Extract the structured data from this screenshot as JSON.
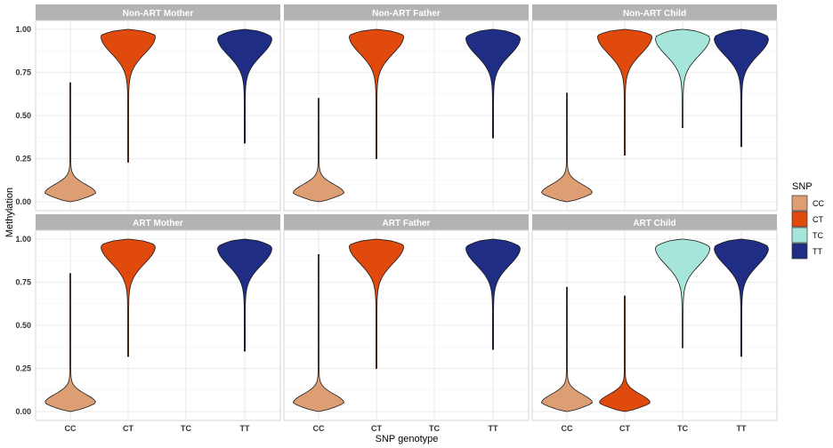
{
  "chart_data": {
    "type": "violin",
    "xlabel": "SNP genotype",
    "ylabel": "Methylation",
    "ylim": [
      0,
      1
    ],
    "yticks": [
      "0.00",
      "0.25",
      "0.50",
      "0.75",
      "1.00"
    ],
    "categories": [
      "CC",
      "CT",
      "TC",
      "TT"
    ],
    "grid": true,
    "legend": {
      "title": "SNP",
      "position": "right",
      "entries": [
        {
          "name": "CC",
          "color": "#DD9E73"
        },
        {
          "name": "CT",
          "color": "#E04A0D"
        },
        {
          "name": "TC",
          "color": "#A6E6DA"
        },
        {
          "name": "TT",
          "color": "#1F2D85"
        }
      ]
    },
    "panels": [
      {
        "title": "Non-ART Mother",
        "violins": [
          {
            "category": "CC",
            "min": 0.0,
            "max": 0.69,
            "peak": 0.05
          },
          {
            "category": "CT",
            "min": 0.23,
            "max": 1.0,
            "peak": 0.96
          },
          {
            "category": "TT",
            "min": 0.34,
            "max": 1.0,
            "peak": 0.95
          }
        ]
      },
      {
        "title": "Non-ART Father",
        "violins": [
          {
            "category": "CC",
            "min": 0.0,
            "max": 0.6,
            "peak": 0.05
          },
          {
            "category": "CT",
            "min": 0.25,
            "max": 1.0,
            "peak": 0.96
          },
          {
            "category": "TT",
            "min": 0.37,
            "max": 1.0,
            "peak": 0.95
          }
        ]
      },
      {
        "title": "Non-ART Child",
        "violins": [
          {
            "category": "CC",
            "min": 0.0,
            "max": 0.63,
            "peak": 0.05
          },
          {
            "category": "CT",
            "min": 0.27,
            "max": 1.0,
            "peak": 0.96
          },
          {
            "category": "TC",
            "min": 0.43,
            "max": 1.0,
            "peak": 0.95
          },
          {
            "category": "TT",
            "min": 0.32,
            "max": 1.0,
            "peak": 0.95
          }
        ]
      },
      {
        "title": "ART Mother",
        "violins": [
          {
            "category": "CC",
            "min": 0.0,
            "max": 0.8,
            "peak": 0.05
          },
          {
            "category": "CT",
            "min": 0.32,
            "max": 1.0,
            "peak": 0.96
          },
          {
            "category": "TT",
            "min": 0.35,
            "max": 1.0,
            "peak": 0.95
          }
        ]
      },
      {
        "title": "ART Father",
        "violins": [
          {
            "category": "CC",
            "min": 0.0,
            "max": 0.91,
            "peak": 0.05
          },
          {
            "category": "CT",
            "min": 0.25,
            "max": 1.0,
            "peak": 0.96
          },
          {
            "category": "TT",
            "min": 0.36,
            "max": 1.0,
            "peak": 0.95
          }
        ]
      },
      {
        "title": "ART Child",
        "violins": [
          {
            "category": "CC",
            "min": 0.0,
            "max": 0.72,
            "peak": 0.05
          },
          {
            "category": "CT",
            "min": 0.0,
            "max": 0.67,
            "peak": 0.05
          },
          {
            "category": "TC",
            "min": 0.37,
            "max": 1.0,
            "peak": 0.95
          },
          {
            "category": "TT",
            "min": 0.32,
            "max": 1.0,
            "peak": 0.95
          }
        ]
      }
    ]
  }
}
